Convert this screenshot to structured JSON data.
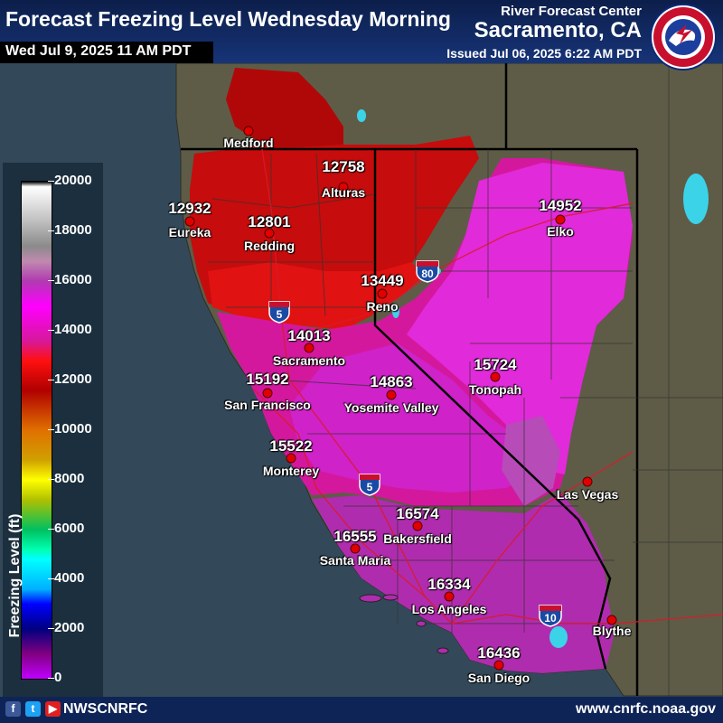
{
  "header": {
    "title": "Forecast Freezing Level Wednesday Morning",
    "valid_time": "Wed Jul 9, 2025 11 AM PDT",
    "agency": "River Forecast Center",
    "office": "Sacramento, CA",
    "issued": "Issued Jul 06, 2025 6:22 AM PDT",
    "logo_text": "NATIONAL WEATHER SERVICE"
  },
  "legend": {
    "title": "Freezing Level (ft)",
    "ticks": [
      "20000",
      "18000",
      "16000",
      "14000",
      "12000",
      "10000",
      "8000",
      "6000",
      "4000",
      "2000",
      "0"
    ]
  },
  "highways": [
    "5",
    "80",
    "5",
    "10"
  ],
  "stations": [
    {
      "name": "Medford",
      "value": ""
    },
    {
      "name": "Alturas",
      "value": "12758"
    },
    {
      "name": "Eureka",
      "value": "12932"
    },
    {
      "name": "Redding",
      "value": "12801"
    },
    {
      "name": "Elko",
      "value": "14952"
    },
    {
      "name": "Reno",
      "value": "13449"
    },
    {
      "name": "Sacramento",
      "value": "14013"
    },
    {
      "name": "San Francisco",
      "value": "15192"
    },
    {
      "name": "Tonopah",
      "value": "15724"
    },
    {
      "name": "Yosemite Valley",
      "value": "14863"
    },
    {
      "name": "Monterey",
      "value": "15522"
    },
    {
      "name": "Las Vegas",
      "value": ""
    },
    {
      "name": "Bakersfield",
      "value": "16574"
    },
    {
      "name": "Santa Maria",
      "value": "16555"
    },
    {
      "name": "Los Angeles",
      "value": "16334"
    },
    {
      "name": "Blythe",
      "value": ""
    },
    {
      "name": "San Diego",
      "value": "16436"
    }
  ],
  "footer": {
    "handle": "NWSCNRFC",
    "website": "www.cnrfc.noaa.gov",
    "social_icons": [
      "facebook-icon",
      "twitter-icon",
      "youtube-icon"
    ]
  },
  "colors": {
    "ocean": "#33495a",
    "land": "#5e5c47",
    "band_12000": "#c8080a",
    "band_13000": "#e01010",
    "band_14000": "#d0139a",
    "band_15000": "#e023d8",
    "band_16000": "#b32bb5",
    "header_bg": "#173478"
  }
}
